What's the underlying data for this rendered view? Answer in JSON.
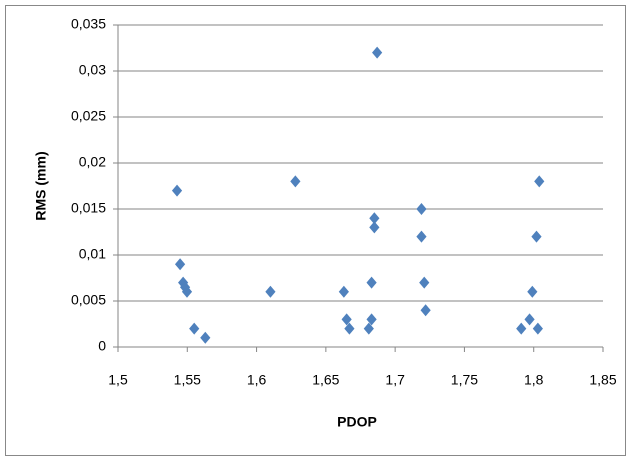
{
  "chart_data": {
    "type": "scatter",
    "x_label": "PDOP",
    "y_label": "RMS (mm)",
    "color": "#4f81bd",
    "grid": true,
    "x": [
      1.5426,
      1.5448,
      1.547,
      1.5484,
      1.5498,
      1.555,
      1.563,
      1.61,
      1.628,
      1.663,
      1.665,
      1.667,
      1.681,
      1.683,
      1.683,
      1.685,
      1.685,
      1.687,
      1.719,
      1.719,
      1.721,
      1.722,
      1.791,
      1.797,
      1.799,
      1.802,
      1.803,
      1.804
    ],
    "values": [
      0.017,
      0.009,
      0.007,
      0.0065,
      0.006,
      0.002,
      0.001,
      0.006,
      0.018,
      0.006,
      0.003,
      0.002,
      0.002,
      0.003,
      0.007,
      0.014,
      0.013,
      0.032,
      0.015,
      0.012,
      0.007,
      0.004,
      0.002,
      0.003,
      0.006,
      0.012,
      0.002,
      0.018
    ],
    "xlim": [
      1.5,
      1.85
    ],
    "xticks": [
      {
        "value": 1.5,
        "label": "1,5"
      },
      {
        "value": 1.55,
        "label": "1,55"
      },
      {
        "value": 1.6,
        "label": "1,6"
      },
      {
        "value": 1.65,
        "label": "1,65"
      },
      {
        "value": 1.7,
        "label": "1,7"
      },
      {
        "value": 1.75,
        "label": "1,75"
      },
      {
        "value": 1.8,
        "label": "1,8"
      },
      {
        "value": 1.85,
        "label": "1,85"
      }
    ],
    "ylim": [
      0,
      0.035
    ],
    "yticks": [
      0,
      {
        "value": 0.005,
        "label": "0,005"
      },
      {
        "value": 0.01,
        "label": "0,01"
      },
      {
        "value": 0.015,
        "label": "0,015"
      },
      {
        "value": 0.02,
        "label": "0,02"
      },
      {
        "value": 0.025,
        "label": "0,025"
      },
      {
        "value": 0.03,
        "label": "0,03"
      },
      {
        "value": 0.035,
        "label": "0,035"
      }
    ]
  }
}
